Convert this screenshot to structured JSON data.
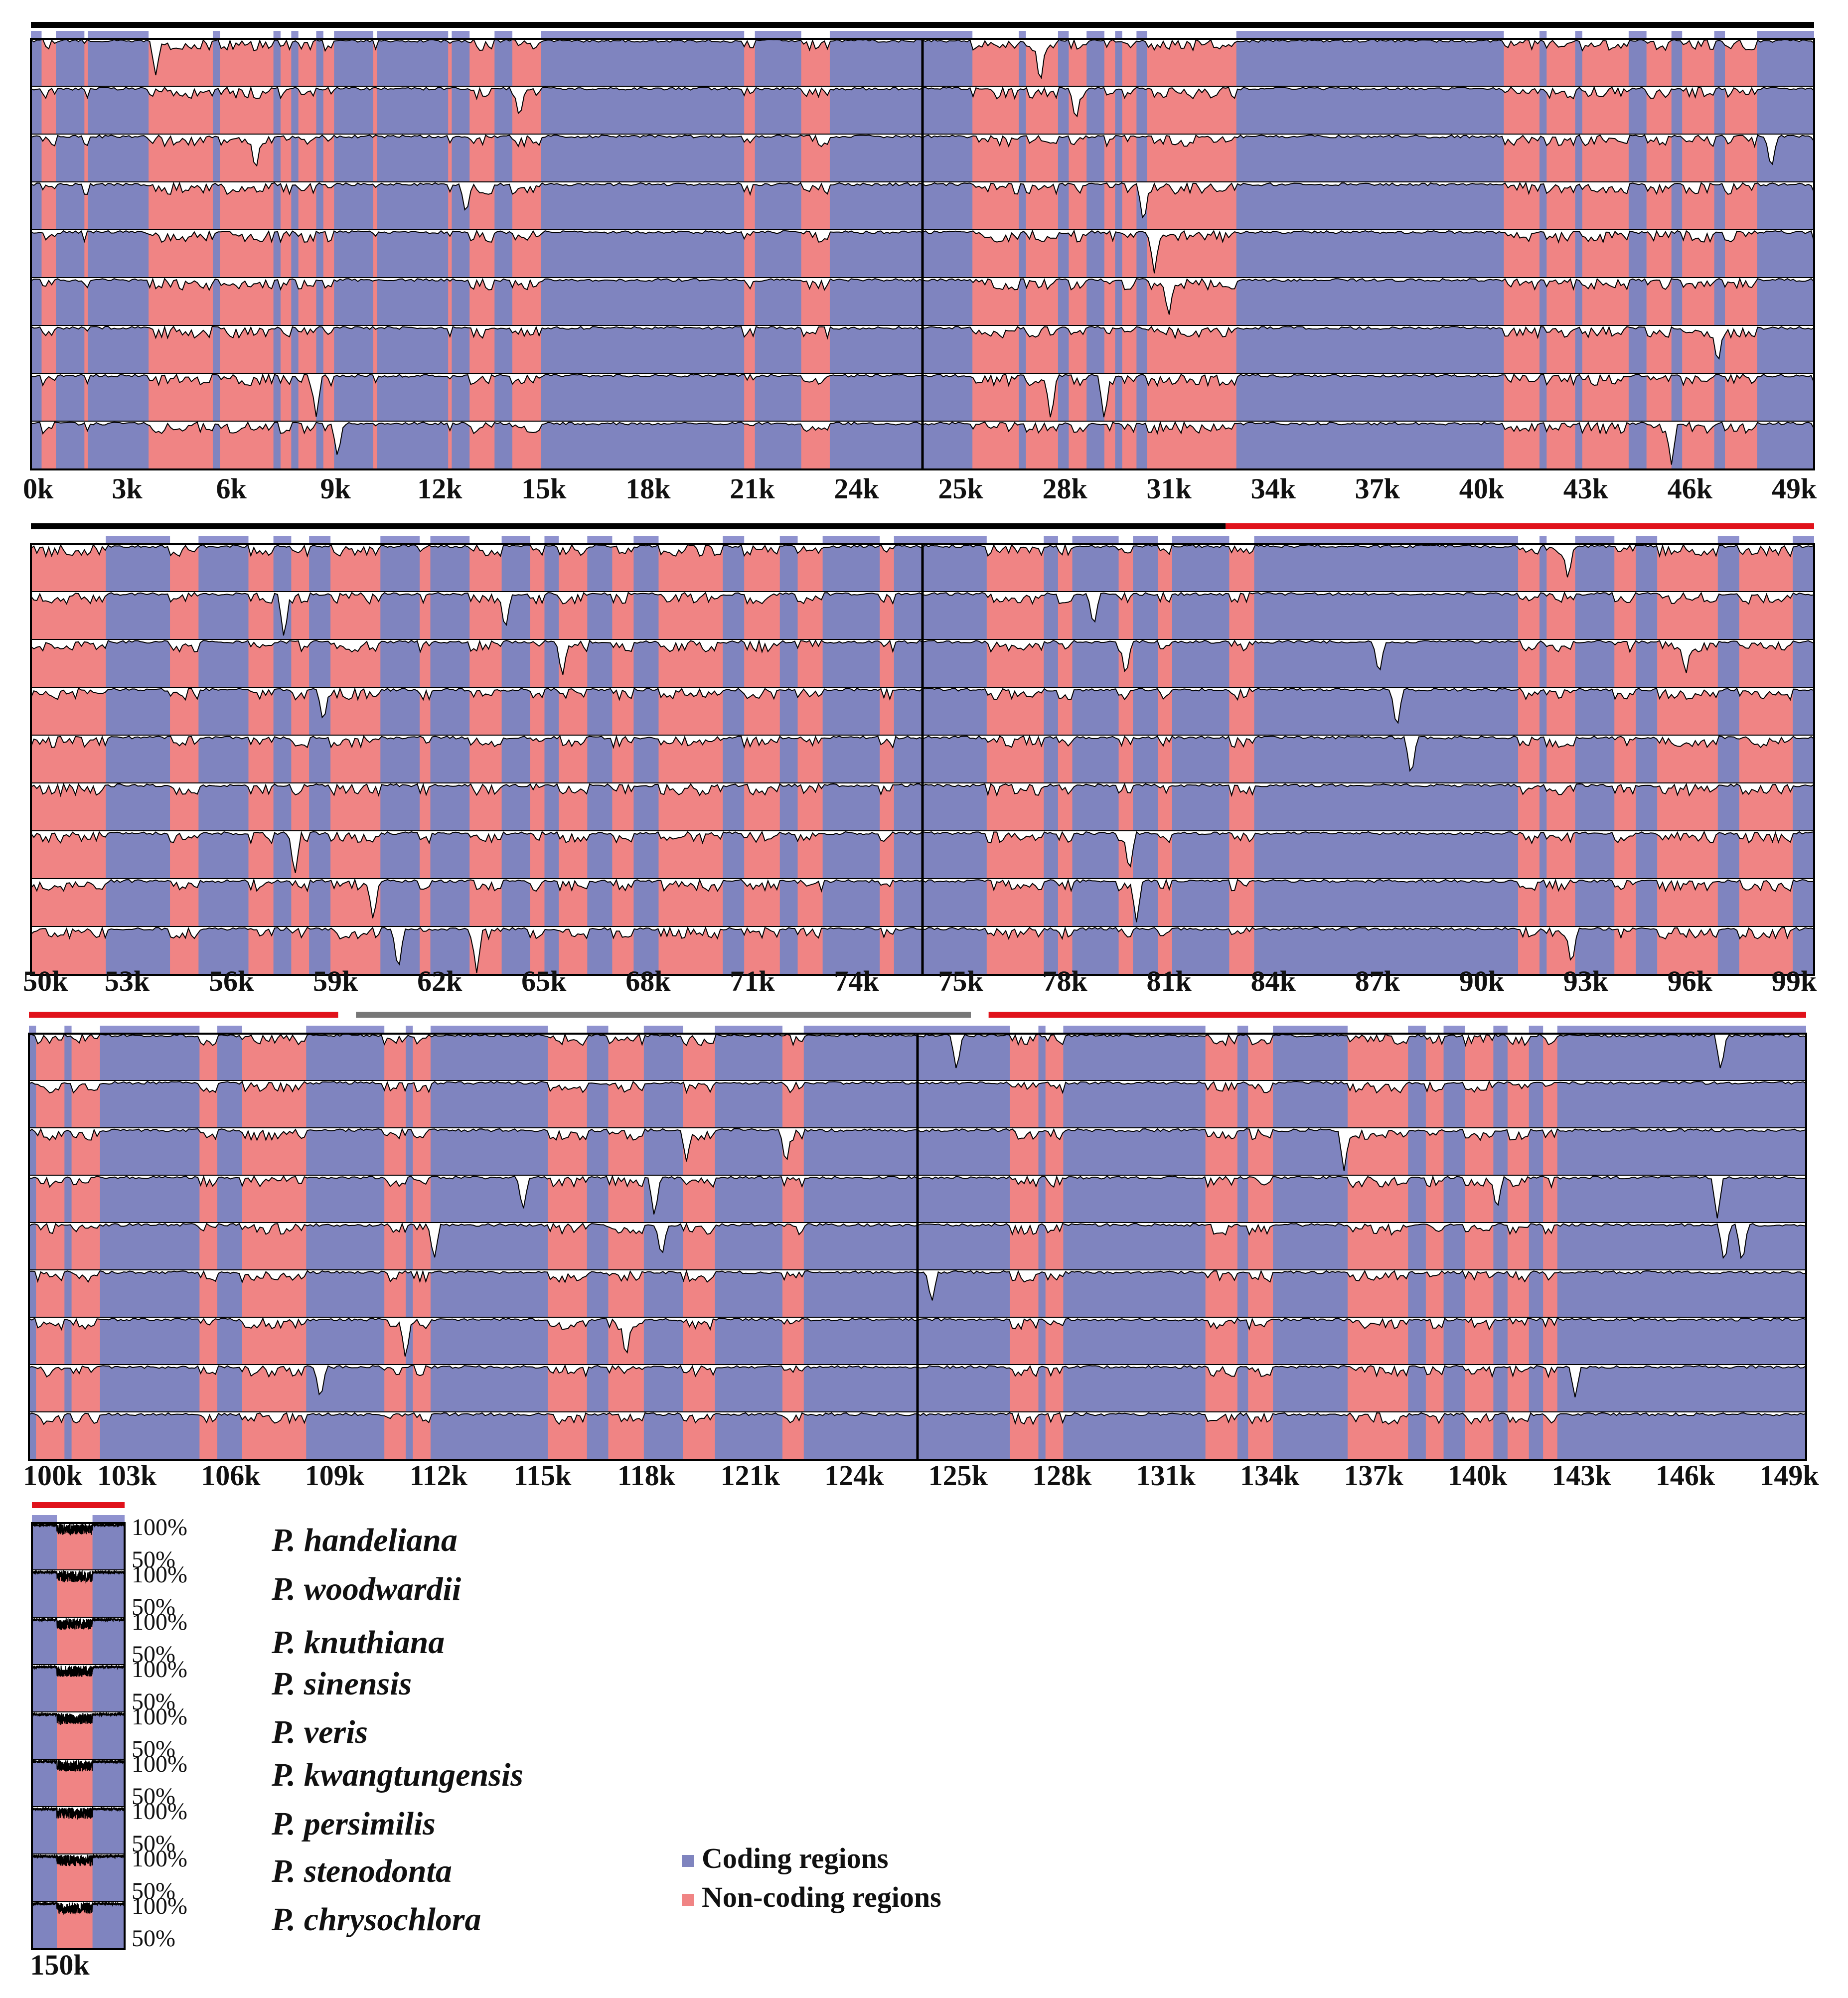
{
  "colors": {
    "coding": "#7f84bf",
    "noncoding": "#f08484",
    "lsc_bar": "#000000",
    "ir_bar": "#e0121b",
    "ssc_bar": "#777777",
    "curve": "#000000",
    "gene_box": "#8f92cf"
  },
  "legend": {
    "coding_label": "Coding regions",
    "noncoding_label": "Non-coding regions"
  },
  "species": [
    "P. handeliana",
    "P. woodwardii",
    "P. knuthiana",
    "P. sinensis",
    "P. veris",
    "P. kwangtungensis",
    "P. persimilis",
    "P. stenodonta",
    "P. chrysochlora"
  ],
  "y_labels": {
    "high": "100%",
    "low": "50%"
  },
  "chart_data": {
    "type": "area",
    "description_units": "percent identity vs. position (bp)",
    "ylim": [
      50,
      100
    ],
    "tracks": 9,
    "panels": [
      {
        "xlim": [
          0,
          50000
        ],
        "tick_labels": [
          "0k",
          "3k",
          "6k",
          "9k",
          "12k",
          "15k",
          "18k",
          "21k",
          "24k",
          "25k",
          "28k",
          "31k",
          "34k",
          "37k",
          "40k",
          "43k",
          "46k",
          "49k"
        ],
        "region_bar": [
          {
            "type": "LSC",
            "start": 0,
            "end": 50000
          }
        ]
      },
      {
        "xlim": [
          50000,
          100000
        ],
        "tick_labels": [
          "50k",
          "53k",
          "56k",
          "59k",
          "62k",
          "65k",
          "68k",
          "71k",
          "74k",
          "75k",
          "78k",
          "81k",
          "84k",
          "87k",
          "90k",
          "93k",
          "96k",
          "99k"
        ],
        "region_bar": [
          {
            "type": "LSC",
            "start": 50000,
            "end": 83500
          },
          {
            "type": "IR",
            "start": 83500,
            "end": 100000
          }
        ]
      },
      {
        "xlim": [
          100000,
          150000
        ],
        "tick_labels": [
          "100k",
          "103k",
          "106k",
          "109k",
          "112k",
          "115k",
          "118k",
          "121k",
          "124k",
          "125k",
          "128k",
          "131k",
          "134k",
          "137k",
          "140k",
          "143k",
          "146k",
          "149k"
        ],
        "region_bar": [
          {
            "type": "IR",
            "start": 100000,
            "end": 108700
          },
          {
            "type": "SSC",
            "start": 109200,
            "end": 126500
          },
          {
            "type": "IR",
            "start": 127000,
            "end": 150000
          }
        ]
      },
      {
        "xlim": [
          150000,
          152600
        ],
        "tick_labels": [
          "150k"
        ],
        "region_bar": [
          {
            "type": "IR",
            "start": 150000,
            "end": 152600
          }
        ]
      }
    ],
    "regions": [
      [
        "c",
        0,
        300
      ],
      [
        "n",
        300,
        700
      ],
      [
        "c",
        700,
        1500
      ],
      [
        "n",
        1500,
        1600
      ],
      [
        "c",
        1600,
        3300
      ],
      [
        "n",
        3300,
        5100
      ],
      [
        "c",
        5100,
        5300
      ],
      [
        "n",
        5300,
        6800
      ],
      [
        "c",
        6800,
        7000
      ],
      [
        "n",
        7000,
        7300
      ],
      [
        "c",
        7300,
        7500
      ],
      [
        "n",
        7500,
        8000
      ],
      [
        "c",
        8000,
        8200
      ],
      [
        "n",
        8200,
        8500
      ],
      [
        "c",
        8500,
        9600
      ],
      [
        "n",
        9600,
        9700
      ],
      [
        "c",
        9700,
        11700
      ],
      [
        "n",
        11700,
        11800
      ],
      [
        "c",
        11800,
        12300
      ],
      [
        "n",
        12300,
        13000
      ],
      [
        "c",
        13000,
        13500
      ],
      [
        "n",
        13500,
        14300
      ],
      [
        "c",
        14300,
        20000
      ],
      [
        "n",
        20000,
        20300
      ],
      [
        "c",
        20300,
        21600
      ],
      [
        "n",
        21600,
        22400
      ],
      [
        "c",
        22400,
        26400
      ],
      [
        "n",
        26400,
        27700
      ],
      [
        "c",
        27700,
        27900
      ],
      [
        "n",
        27900,
        28800
      ],
      [
        "c",
        28800,
        29100
      ],
      [
        "n",
        29100,
        29600
      ],
      [
        "c",
        29600,
        30100
      ],
      [
        "n",
        30100,
        30400
      ],
      [
        "c",
        30400,
        30600
      ],
      [
        "n",
        30600,
        31000
      ],
      [
        "c",
        31000,
        31300
      ],
      [
        "n",
        31300,
        33800
      ],
      [
        "c",
        33800,
        41300
      ],
      [
        "n",
        41300,
        42300
      ],
      [
        "c",
        42300,
        42500
      ],
      [
        "n",
        42500,
        43300
      ],
      [
        "c",
        43300,
        43500
      ],
      [
        "n",
        43500,
        44800
      ],
      [
        "c",
        44800,
        45300
      ],
      [
        "n",
        45300,
        46000
      ],
      [
        "c",
        46000,
        46300
      ],
      [
        "n",
        46300,
        47200
      ],
      [
        "c",
        47200,
        47500
      ],
      [
        "n",
        47500,
        48400
      ],
      [
        "c",
        48400,
        50000
      ],
      [
        "n",
        50000,
        52100
      ],
      [
        "c",
        52100,
        53900
      ],
      [
        "n",
        53900,
        54700
      ],
      [
        "c",
        54700,
        56100
      ],
      [
        "n",
        56100,
        56800
      ],
      [
        "c",
        56800,
        57300
      ],
      [
        "n",
        57300,
        57800
      ],
      [
        "c",
        57800,
        58400
      ],
      [
        "n",
        58400,
        59800
      ],
      [
        "c",
        59800,
        60900
      ],
      [
        "n",
        60900,
        61200
      ],
      [
        "c",
        61200,
        62300
      ],
      [
        "n",
        62300,
        63200
      ],
      [
        "c",
        63200,
        64000
      ],
      [
        "n",
        64000,
        64400
      ],
      [
        "c",
        64400,
        64800
      ],
      [
        "n",
        64800,
        65600
      ],
      [
        "c",
        65600,
        66300
      ],
      [
        "n",
        66300,
        66900
      ],
      [
        "c",
        66900,
        67600
      ],
      [
        "n",
        67600,
        69400
      ],
      [
        "c",
        69400,
        70000
      ],
      [
        "n",
        70000,
        71000
      ],
      [
        "c",
        71000,
        71500
      ],
      [
        "n",
        71500,
        72200
      ],
      [
        "c",
        72200,
        73800
      ],
      [
        "n",
        73800,
        74200
      ],
      [
        "c",
        74200,
        76800
      ],
      [
        "n",
        76800,
        78400
      ],
      [
        "c",
        78400,
        78800
      ],
      [
        "n",
        78800,
        79200
      ],
      [
        "c",
        79200,
        80500
      ],
      [
        "n",
        80500,
        80900
      ],
      [
        "c",
        80900,
        81600
      ],
      [
        "n",
        81600,
        82000
      ],
      [
        "c",
        82000,
        83600
      ],
      [
        "n",
        83600,
        84300
      ],
      [
        "c",
        84300,
        91700
      ],
      [
        "n",
        91700,
        92300
      ],
      [
        "c",
        92300,
        92500
      ],
      [
        "n",
        92500,
        93300
      ],
      [
        "c",
        93300,
        94400
      ],
      [
        "n",
        94400,
        95000
      ],
      [
        "c",
        95000,
        95600
      ],
      [
        "n",
        95600,
        97300
      ],
      [
        "c",
        97300,
        97900
      ],
      [
        "n",
        97900,
        99400
      ],
      [
        "c",
        99400,
        100000
      ],
      [
        "c",
        100000,
        100200
      ],
      [
        "n",
        100200,
        101000
      ],
      [
        "c",
        101000,
        101200
      ],
      [
        "n",
        101200,
        102000
      ],
      [
        "c",
        102000,
        104800
      ],
      [
        "n",
        104800,
        105300
      ],
      [
        "c",
        105300,
        106000
      ],
      [
        "n",
        106000,
        107800
      ],
      [
        "c",
        107800,
        110000
      ],
      [
        "n",
        110000,
        110600
      ],
      [
        "c",
        110600,
        110800
      ],
      [
        "n",
        110800,
        111300
      ],
      [
        "c",
        111300,
        114600
      ],
      [
        "n",
        114600,
        115700
      ],
      [
        "c",
        115700,
        116300
      ],
      [
        "n",
        116300,
        117300
      ],
      [
        "c",
        117300,
        118400
      ],
      [
        "n",
        118400,
        119300
      ],
      [
        "c",
        119300,
        121200
      ],
      [
        "n",
        121200,
        121800
      ],
      [
        "c",
        121800,
        127600
      ],
      [
        "n",
        127600,
        128400
      ],
      [
        "c",
        128400,
        128600
      ],
      [
        "n",
        128600,
        129100
      ],
      [
        "c",
        129100,
        133100
      ],
      [
        "n",
        133100,
        134000
      ],
      [
        "c",
        134000,
        134300
      ],
      [
        "n",
        134300,
        135000
      ],
      [
        "c",
        135000,
        137100
      ],
      [
        "n",
        137100,
        138800
      ],
      [
        "c",
        138800,
        139300
      ],
      [
        "n",
        139300,
        139800
      ],
      [
        "c",
        139800,
        140400
      ],
      [
        "n",
        140400,
        141200
      ],
      [
        "c",
        141200,
        141600
      ],
      [
        "n",
        141600,
        142200
      ],
      [
        "c",
        142200,
        142600
      ],
      [
        "n",
        142600,
        143000
      ],
      [
        "c",
        143000,
        150000
      ],
      [
        "c",
        150000,
        150700
      ],
      [
        "n",
        150700,
        151700
      ],
      [
        "c",
        151700,
        152600
      ]
    ],
    "dips": [
      [
        3500,
        0,
        62
      ],
      [
        6300,
        2,
        60
      ],
      [
        8000,
        7,
        55
      ],
      [
        8600,
        8,
        62
      ],
      [
        12200,
        3,
        65
      ],
      [
        13700,
        1,
        66
      ],
      [
        28300,
        0,
        50
      ],
      [
        28600,
        7,
        50
      ],
      [
        29300,
        1,
        62
      ],
      [
        30100,
        7,
        50
      ],
      [
        31200,
        3,
        55
      ],
      [
        31500,
        4,
        55
      ],
      [
        31900,
        5,
        58
      ],
      [
        46000,
        8,
        55
      ],
      [
        47300,
        6,
        58
      ],
      [
        48800,
        2,
        62
      ],
      [
        57100,
        1,
        50
      ],
      [
        57400,
        6,
        52
      ],
      [
        58200,
        3,
        62
      ],
      [
        59600,
        7,
        55
      ],
      [
        60300,
        8,
        52
      ],
      [
        62500,
        8,
        52
      ],
      [
        63300,
        1,
        58
      ],
      [
        64900,
        2,
        60
      ],
      [
        79800,
        1,
        62
      ],
      [
        80700,
        2,
        60
      ],
      [
        80800,
        6,
        55
      ],
      [
        81000,
        7,
        55
      ],
      [
        87800,
        2,
        62
      ],
      [
        88300,
        3,
        55
      ],
      [
        88700,
        4,
        55
      ],
      [
        93100,
        0,
        62
      ],
      [
        93200,
        8,
        58
      ],
      [
        96400,
        2,
        62
      ],
      [
        108200,
        7,
        62
      ],
      [
        110600,
        6,
        55
      ],
      [
        111400,
        4,
        60
      ],
      [
        113900,
        3,
        62
      ],
      [
        116800,
        6,
        55
      ],
      [
        117600,
        3,
        55
      ],
      [
        117800,
        4,
        62
      ],
      [
        118500,
        2,
        65
      ],
      [
        121300,
        2,
        60
      ],
      [
        125400,
        5,
        65
      ],
      [
        126100,
        0,
        60
      ],
      [
        137000,
        2,
        55
      ],
      [
        141300,
        3,
        62
      ],
      [
        147600,
        0,
        60
      ],
      [
        147500,
        3,
        55
      ],
      [
        147700,
        4,
        55
      ],
      [
        148200,
        4,
        55
      ],
      [
        143500,
        7,
        66
      ]
    ]
  }
}
